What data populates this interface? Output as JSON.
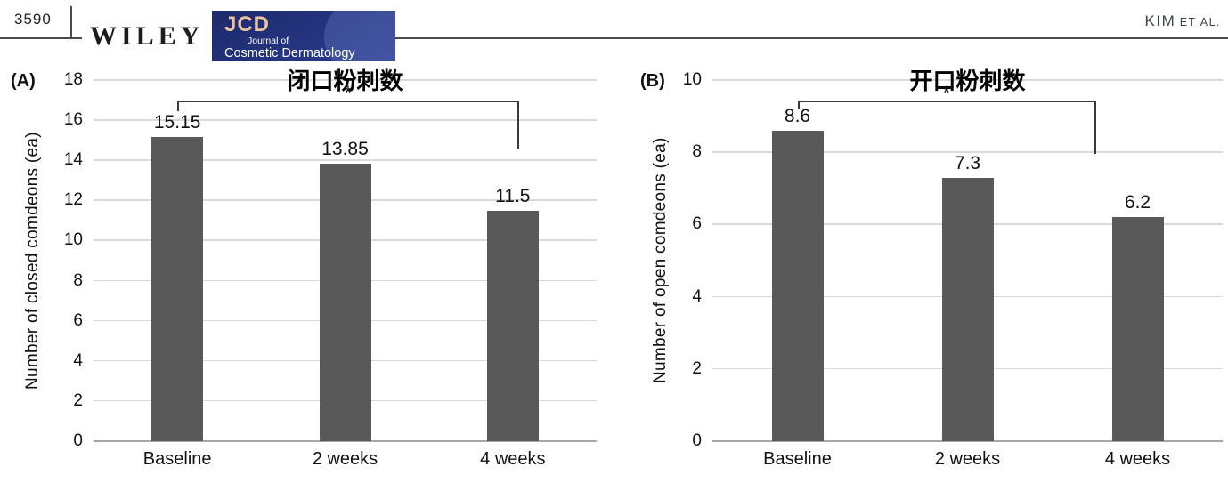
{
  "header": {
    "page_number": "3590",
    "publisher_logo": "WILEY",
    "journal_badge": {
      "abbrev": "JCD",
      "tagline": "Journal of",
      "journal_name": "Cosmetic Dermatology"
    },
    "running_head": {
      "author": "KIM",
      "suffix": "ET AL."
    }
  },
  "colors": {
    "bar": "#595959",
    "gridline": "#d9d9d9",
    "axis_line": "#a6a6a6",
    "bracket": "#3a3a3a",
    "badge_background": "#1d2a6b",
    "badge_abbrev": "#eac3a2",
    "badge_text": "#ffffff",
    "text": "#1a1a1a"
  },
  "chart_data": [
    {
      "type": "bar",
      "panel": "(A)",
      "title": "闭口粉刺数",
      "ylabel": "Number of closed comdeons (ea)",
      "xlabel": "",
      "categories": [
        "Baseline",
        "2 weeks",
        "4 weeks"
      ],
      "values": [
        15.15,
        13.85,
        11.5
      ],
      "value_labels": [
        "15.15",
        "13.85",
        "11.5"
      ],
      "ylim": [
        0,
        18
      ],
      "ytick_step": 2,
      "yticks": [
        0,
        2,
        4,
        6,
        8,
        10,
        12,
        14,
        16,
        18
      ],
      "grid": true,
      "legend": false,
      "significance": {
        "marker": "*",
        "from": "Baseline",
        "to": "4 weeks"
      }
    },
    {
      "type": "bar",
      "panel": "(B)",
      "title": "开口粉刺数",
      "ylabel": "Number of open comdeons (ea)",
      "xlabel": "",
      "categories": [
        "Baseline",
        "2 weeks",
        "4 weeks"
      ],
      "values": [
        8.6,
        7.3,
        6.2
      ],
      "value_labels": [
        "8.6",
        "7.3",
        "6.2"
      ],
      "ylim": [
        0,
        10
      ],
      "ytick_step": 2,
      "yticks": [
        0,
        2,
        4,
        6,
        8,
        10
      ],
      "grid": true,
      "legend": false,
      "significance": {
        "marker": "*",
        "from": "Baseline",
        "to": "4 weeks"
      }
    }
  ]
}
